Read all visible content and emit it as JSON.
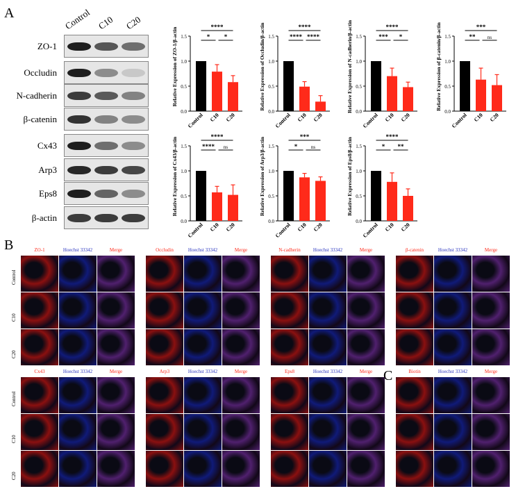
{
  "panels": {
    "A": "A",
    "B": "B",
    "C": "C"
  },
  "western_blot": {
    "columns": [
      "Control",
      "C10",
      "C20"
    ],
    "proteins": [
      {
        "name": "ZO-1",
        "intensity": [
          1.0,
          0.72,
          0.6
        ]
      },
      {
        "name": "Occludin",
        "intensity": [
          1.0,
          0.45,
          0.15
        ]
      },
      {
        "name": "N-cadherin",
        "intensity": [
          0.85,
          0.7,
          0.5
        ]
      },
      {
        "name": "β-catenin",
        "intensity": [
          0.9,
          0.5,
          0.45
        ]
      },
      {
        "name": "Cx43",
        "intensity": [
          1.0,
          0.6,
          0.45
        ]
      },
      {
        "name": "Arp3",
        "intensity": [
          0.95,
          0.85,
          0.8
        ]
      },
      {
        "name": "Eps8",
        "intensity": [
          1.0,
          0.65,
          0.45
        ]
      },
      {
        "name": "β-actin",
        "intensity": [
          0.85,
          0.85,
          0.85
        ]
      }
    ]
  },
  "colors": {
    "control": "#000000",
    "treated": "#ff2a1a",
    "if_red": "#8a1010",
    "if_blue": "#101a78",
    "if_merge": "#50206e"
  },
  "chart_data": [
    {
      "type": "bar",
      "ylabel": "Relative Expression of ZO-1/β-actin",
      "categories": [
        "Control",
        "C10",
        "C20"
      ],
      "values": [
        1.0,
        0.79,
        0.58
      ],
      "errors": [
        0,
        0.14,
        0.13
      ],
      "ylim": [
        0,
        1.5
      ],
      "yticks": [
        "0.0",
        "0.5",
        "1.0",
        "1.5"
      ],
      "sig": [
        {
          "from": 0,
          "to": 2,
          "label": "****",
          "level": 2
        },
        {
          "from": 0,
          "to": 1,
          "label": "*",
          "level": 1
        },
        {
          "from": 1,
          "to": 2,
          "label": "*",
          "level": 1
        }
      ]
    },
    {
      "type": "bar",
      "ylabel": "Relative Expression of Occludin/β-actin",
      "categories": [
        "Control",
        "C10",
        "C20"
      ],
      "values": [
        1.0,
        0.49,
        0.19
      ],
      "errors": [
        0,
        0.1,
        0.12
      ],
      "ylim": [
        0,
        1.5
      ],
      "yticks": [
        "0.0",
        "0.5",
        "1.0",
        "1.5"
      ],
      "sig": [
        {
          "from": 0,
          "to": 2,
          "label": "****",
          "level": 2
        },
        {
          "from": 0,
          "to": 1,
          "label": "****",
          "level": 1
        },
        {
          "from": 1,
          "to": 2,
          "label": "****",
          "level": 1
        }
      ]
    },
    {
      "type": "bar",
      "ylabel": "Relative Expression of N-cadherin/β-actin",
      "categories": [
        "Control",
        "C10",
        "C20"
      ],
      "values": [
        1.0,
        0.7,
        0.48
      ],
      "errors": [
        0,
        0.16,
        0.1
      ],
      "ylim": [
        0,
        1.5
      ],
      "yticks": [
        "0.0",
        "0.5",
        "1.0",
        "1.5"
      ],
      "sig": [
        {
          "from": 0,
          "to": 2,
          "label": "****",
          "level": 2
        },
        {
          "from": 0,
          "to": 1,
          "label": "***",
          "level": 1
        },
        {
          "from": 1,
          "to": 2,
          "label": "*",
          "level": 1
        }
      ]
    },
    {
      "type": "bar",
      "ylabel": "Relative Expression of β-catenin/β-actin",
      "categories": [
        "Control",
        "C10",
        "C20"
      ],
      "values": [
        1.0,
        0.63,
        0.52
      ],
      "errors": [
        0,
        0.23,
        0.21
      ],
      "ylim": [
        0,
        1.5
      ],
      "yticks": [
        "0.0",
        "0.5",
        "1.0",
        "1.5"
      ],
      "sig": [
        {
          "from": 0,
          "to": 2,
          "label": "***",
          "level": 2
        },
        {
          "from": 0,
          "to": 1,
          "label": "**",
          "level": 1
        },
        {
          "from": 1,
          "to": 2,
          "label": "ns",
          "level": 1
        }
      ]
    },
    {
      "type": "bar",
      "ylabel": "Relative Expression of Cx43/β-actin",
      "categories": [
        "Control",
        "C10",
        "C20"
      ],
      "values": [
        1.0,
        0.57,
        0.52
      ],
      "errors": [
        0,
        0.12,
        0.2
      ],
      "ylim": [
        0,
        1.5
      ],
      "yticks": [
        "0.0",
        "0.5",
        "1.0",
        "1.5"
      ],
      "sig": [
        {
          "from": 0,
          "to": 2,
          "label": "****",
          "level": 2
        },
        {
          "from": 0,
          "to": 1,
          "label": "****",
          "level": 1
        },
        {
          "from": 1,
          "to": 2,
          "label": "ns",
          "level": 1
        }
      ]
    },
    {
      "type": "bar",
      "ylabel": "Relative Expression of Arp3/β-actin",
      "categories": [
        "Control",
        "C10",
        "C20"
      ],
      "values": [
        1.0,
        0.87,
        0.8
      ],
      "errors": [
        0,
        0.08,
        0.08
      ],
      "ylim": [
        0,
        1.5
      ],
      "yticks": [
        "0.0",
        "0.5",
        "1.0",
        "1.5"
      ],
      "sig": [
        {
          "from": 0,
          "to": 2,
          "label": "***",
          "level": 2
        },
        {
          "from": 0,
          "to": 1,
          "label": "*",
          "level": 1
        },
        {
          "from": 1,
          "to": 2,
          "label": "ns",
          "level": 1
        }
      ]
    },
    {
      "type": "bar",
      "ylabel": "Relative Expression of Eps8/β-actin",
      "categories": [
        "Control",
        "C10",
        "C20"
      ],
      "values": [
        1.0,
        0.78,
        0.5
      ],
      "errors": [
        0,
        0.18,
        0.14
      ],
      "ylim": [
        0,
        1.5
      ],
      "yticks": [
        "0.0",
        "0.5",
        "1.0",
        "1.5"
      ],
      "sig": [
        {
          "from": 0,
          "to": 2,
          "label": "****",
          "level": 2
        },
        {
          "from": 0,
          "to": 1,
          "label": "*",
          "level": 1
        },
        {
          "from": 1,
          "to": 2,
          "label": "**",
          "level": 1
        }
      ]
    }
  ],
  "if_panels": [
    {
      "marker": "ZO-1",
      "blue": "Hoechst 33342",
      "merge": "Merge"
    },
    {
      "marker": "Occludin",
      "blue": "Hoechst 33342",
      "merge": "Merge"
    },
    {
      "marker": "N-cadherin",
      "blue": "Hoechst 33342",
      "merge": "Merge"
    },
    {
      "marker": "β-catenin",
      "blue": "Hoechst 33342",
      "merge": "Merge"
    },
    {
      "marker": "Cx43",
      "blue": "Hoechst 33342",
      "merge": "Merge"
    },
    {
      "marker": "Arp3",
      "blue": "Hoechst 33342",
      "merge": "Merge"
    },
    {
      "marker": "Eps8",
      "blue": "Hoechst 33342",
      "merge": "Merge"
    },
    {
      "marker": "Biotin",
      "blue": "Hoechst 33342",
      "merge": "Merge"
    }
  ],
  "if_rows": [
    "Control",
    "C10",
    "C20"
  ]
}
